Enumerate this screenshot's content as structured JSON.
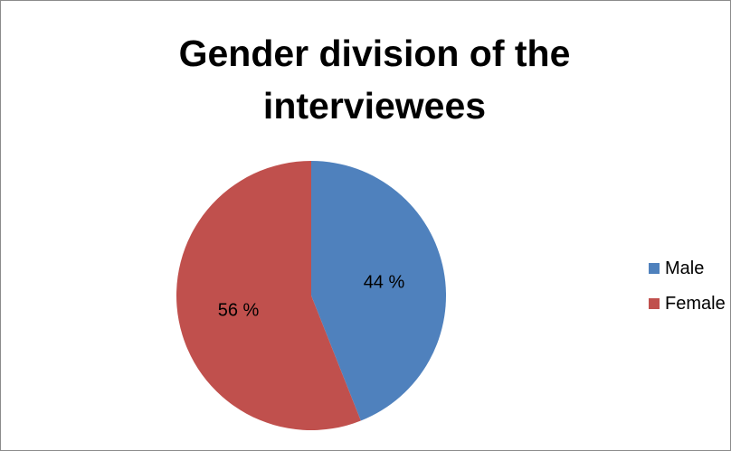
{
  "chart_data": {
    "type": "pie",
    "title_lines": [
      "Gender division of the",
      "interviewees"
    ],
    "categories": [
      "Male",
      "Female"
    ],
    "values": [
      44,
      56
    ],
    "data_labels": [
      "44 %",
      "56 %"
    ],
    "colors": [
      "#4f81bd",
      "#c0504d"
    ],
    "legend_position": "right"
  }
}
